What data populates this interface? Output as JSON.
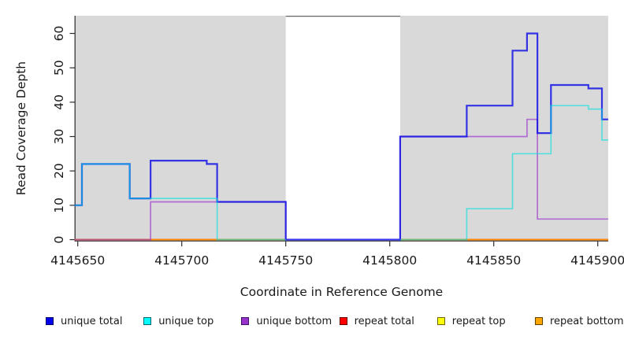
{
  "figure": {
    "background": "#FFFFFF",
    "panel_background": "#D9D9D9",
    "gap_border_color": "#636363",
    "axis_color": "#2b2b2b",
    "text_color": "#1a1a1a"
  },
  "chart_data": {
    "type": "line",
    "subtype": "step",
    "title": "",
    "xlabel": "Coordinate in Reference Genome",
    "ylabel": "Read Coverage Depth",
    "xlim": [
      4145648.5,
      4145905
    ],
    "ylim": [
      0,
      65
    ],
    "x_ticks": [
      4145650,
      4145700,
      4145750,
      4145800,
      4145850,
      4145900
    ],
    "y_ticks": [
      0,
      10,
      20,
      30,
      40,
      50,
      60
    ],
    "grid": false,
    "legend_position": "bottom",
    "shaded_x_regions": [
      [
        4145648.5,
        4145750
      ],
      [
        4145805,
        4145905
      ]
    ],
    "uncovered_gap": [
      4145750,
      4145805
    ],
    "series": [
      {
        "name": "repeat top",
        "color": "#FFFF00",
        "opacity": 0.9,
        "width": 1.7,
        "segments": [
          [
            [
              4145648.5,
              0
            ],
            [
              4145750,
              0
            ]
          ],
          [
            [
              4145805,
              0
            ],
            [
              4145905,
              0
            ]
          ]
        ]
      },
      {
        "name": "repeat total",
        "color": "#E60000",
        "opacity": 0.85,
        "width": 1.7,
        "segments": [
          [
            [
              4145648.5,
              0
            ],
            [
              4145750,
              0
            ]
          ],
          [
            [
              4145805,
              0
            ],
            [
              4145905,
              0
            ]
          ]
        ]
      },
      {
        "name": "repeat bottom",
        "color": "#FF8C00",
        "opacity": 1.0,
        "width": 1.7,
        "segments": [
          [
            [
              4145648.5,
              0
            ],
            [
              4145750,
              0
            ]
          ],
          [
            [
              4145805,
              0
            ],
            [
              4145905,
              0
            ]
          ]
        ]
      },
      {
        "name": "unique bottom",
        "color": "#9932CC",
        "opacity": 0.65,
        "width": 1.7,
        "segments": [
          [
            [
              4145648.5,
              0
            ],
            [
              4145685,
              0
            ],
            [
              4145685,
              11
            ],
            [
              4145750,
              11
            ],
            [
              4145750,
              0
            ]
          ],
          [
            [
              4145805,
              0
            ],
            [
              4145805,
              30
            ],
            [
              4145866,
              30
            ],
            [
              4145866,
              35
            ],
            [
              4145871,
              35
            ],
            [
              4145871,
              6
            ],
            [
              4145905,
              6
            ]
          ]
        ]
      },
      {
        "name": "unique total",
        "color": "#0F0FE6",
        "opacity": 0.82,
        "width": 2.2,
        "segments": [
          [
            [
              4145648.5,
              10
            ],
            [
              4145652,
              10
            ],
            [
              4145652,
              22
            ],
            [
              4145675,
              22
            ],
            [
              4145675,
              12
            ],
            [
              4145685,
              12
            ],
            [
              4145685,
              23
            ],
            [
              4145712,
              23
            ],
            [
              4145712,
              22
            ],
            [
              4145717,
              22
            ],
            [
              4145717,
              11
            ],
            [
              4145750,
              11
            ],
            [
              4145750,
              0
            ],
            [
              4145805,
              0
            ],
            [
              4145805,
              30
            ],
            [
              4145837,
              30
            ],
            [
              4145837,
              39
            ],
            [
              4145859,
              39
            ],
            [
              4145859,
              55
            ],
            [
              4145866,
              55
            ],
            [
              4145866,
              60
            ],
            [
              4145871,
              60
            ],
            [
              4145871,
              31
            ],
            [
              4145877.5,
              31
            ],
            [
              4145877.5,
              45
            ],
            [
              4145895.5,
              45
            ],
            [
              4145895.5,
              44
            ],
            [
              4145902,
              44
            ],
            [
              4145902,
              35
            ],
            [
              4145905,
              35
            ]
          ]
        ]
      },
      {
        "name": "unique top",
        "color": "#00E0E0",
        "opacity": 0.6,
        "width": 1.7,
        "segments": [
          [
            [
              4145648.5,
              10
            ],
            [
              4145652,
              10
            ],
            [
              4145652,
              22
            ],
            [
              4145675,
              22
            ],
            [
              4145675,
              12
            ],
            [
              4145717,
              12
            ],
            [
              4145717,
              0
            ],
            [
              4145750,
              0
            ]
          ],
          [
            [
              4145805,
              0
            ],
            [
              4145837,
              0
            ],
            [
              4145837,
              9
            ],
            [
              4145859,
              9
            ],
            [
              4145859,
              25
            ],
            [
              4145877.5,
              25
            ],
            [
              4145877.5,
              39
            ],
            [
              4145895.5,
              39
            ],
            [
              4145895.5,
              38
            ],
            [
              4145902,
              38
            ],
            [
              4145902,
              29
            ],
            [
              4145905,
              29
            ]
          ]
        ]
      }
    ],
    "legend": {
      "items": [
        {
          "label": "unique total",
          "fill": "#0000EE",
          "border": "#000066"
        },
        {
          "label": "unique top",
          "fill": "#00FFFF",
          "border": "#006666"
        },
        {
          "label": "unique bottom",
          "fill": "#9932CC",
          "border": "#3d1466"
        },
        {
          "label": "repeat total",
          "fill": "#FF0000",
          "border": "#660000"
        },
        {
          "label": "repeat top",
          "fill": "#FFFF00",
          "border": "#666600"
        },
        {
          "label": "repeat bottom",
          "fill": "#FFA500",
          "border": "#664200"
        }
      ]
    }
  }
}
